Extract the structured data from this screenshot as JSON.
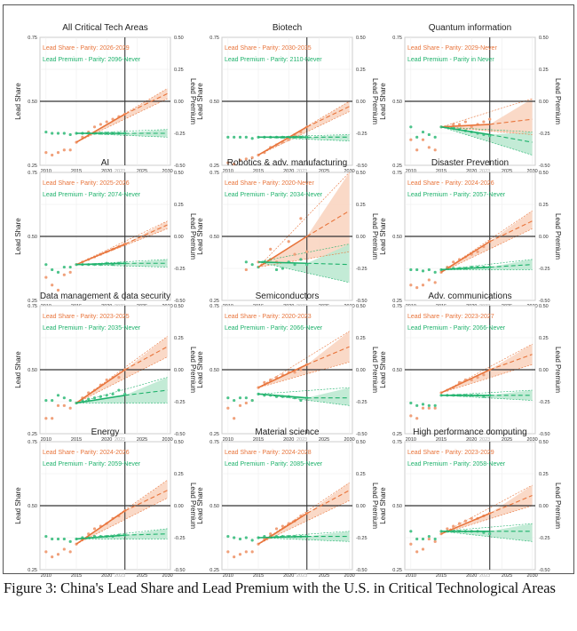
{
  "figure": {
    "caption": "Figure 3: China's Lead Share and Lead Premium with the U.S. in Critical Technological Areas",
    "colors": {
      "share": "#e8743b",
      "share_point": "#f0a07a",
      "share_band": "#f9d2bd",
      "premium": "#1fb26c",
      "premium_point": "#4cc38a",
      "premium_band": "#b8e8cf",
      "reference": "#333333"
    }
  },
  "chart_data": [
    {
      "type": "scatter",
      "title": "All Critical Tech Areas",
      "legend_share": "Lead Share - Parity: 2026-2029",
      "legend_premium": "Lead Premium - Parity: 2096-Never",
      "share": [
        0.3,
        0.29,
        0.3,
        0.31,
        0.31,
        0.34,
        0.36,
        0.38,
        0.4,
        0.41,
        0.42,
        0.43,
        0.44,
        0.45
      ],
      "share_fit": [
        0.34,
        0.45
      ],
      "share_2030": [
        0.51,
        0.53,
        0.55
      ],
      "premium": [
        -0.24,
        -0.25,
        -0.25,
        -0.25,
        -0.26,
        -0.25,
        -0.25,
        -0.25,
        -0.25,
        -0.25,
        -0.25,
        -0.25,
        -0.25,
        -0.25
      ],
      "premium_fit": [
        -0.25,
        -0.25
      ],
      "premium_2030": [
        -0.28,
        -0.25,
        -0.22
      ]
    },
    {
      "type": "scatter",
      "title": "Biotech",
      "legend_share": "Lead Share - Parity: 2030-2035",
      "legend_premium": "Lead Premium - Parity: 2110-Never",
      "share": [
        0.26,
        0.255,
        0.27,
        0.275,
        0.28,
        0.29,
        0.3,
        0.32,
        0.33,
        0.34,
        0.35,
        0.37,
        0.38,
        0.4
      ],
      "share_fit": [
        0.29,
        0.4
      ],
      "share_2030": [
        0.46,
        0.48,
        0.5
      ],
      "premium": [
        -0.28,
        -0.28,
        -0.28,
        -0.28,
        -0.29,
        -0.28,
        -0.28,
        -0.28,
        -0.28,
        -0.28,
        -0.28,
        -0.28,
        -0.28,
        -0.28
      ],
      "premium_fit": [
        -0.28,
        -0.28
      ],
      "premium_2030": [
        -0.31,
        -0.28,
        -0.26
      ]
    },
    {
      "type": "scatter",
      "title": "Quantum information",
      "legend_share": "Lead Share - Parity: 2029-Never",
      "legend_premium": "Lead Premium - Parity in Never",
      "share": [
        0.35,
        0.31,
        0.35,
        0.32,
        0.31,
        0.4,
        0.4,
        0.41,
        0.41,
        0.42,
        0.4,
        0.41,
        0.42,
        0.43
      ],
      "share_fit": [
        0.4,
        0.41
      ],
      "share_2030": [
        0.37,
        0.43,
        0.51
      ],
      "premium": [
        -0.2,
        -0.28,
        -0.24,
        -0.26,
        -0.28,
        -0.2,
        -0.2,
        -0.21,
        -0.22,
        -0.23,
        -0.24,
        -0.25,
        -0.26,
        -0.27
      ],
      "premium_fit": [
        -0.2,
        -0.26
      ],
      "premium_2030": [
        -0.42,
        -0.32,
        -0.24
      ]
    },
    {
      "type": "scatter",
      "title": "AI",
      "legend_share": "Lead Share - Parity: 2025-2026",
      "legend_premium": "Lead Premium - Parity: 2074-Never",
      "share": [
        0.34,
        0.31,
        0.29,
        0.35,
        0.36,
        0.39,
        0.4,
        0.41,
        0.42,
        0.43,
        0.44,
        0.45,
        0.46,
        0.47
      ],
      "share_fit": [
        0.39,
        0.47
      ],
      "share_2030": [
        0.53,
        0.545,
        0.56
      ],
      "premium": [
        -0.22,
        -0.26,
        -0.28,
        -0.24,
        -0.24,
        -0.22,
        -0.22,
        -0.22,
        -0.22,
        -0.22,
        -0.21,
        -0.22,
        -0.21,
        -0.21
      ],
      "premium_fit": [
        -0.22,
        -0.21
      ],
      "premium_2030": [
        -0.24,
        -0.21,
        -0.18
      ]
    },
    {
      "type": "scatter",
      "title": "Robotics & adv. manufacturing",
      "legend_share": "Lead Share - Parity: 2020-Never",
      "legend_premium": "Lead Premium - Parity: 2034-Never",
      "share": [
        null,
        null,
        null,
        0.37,
        null,
        0.4,
        null,
        0.45,
        0.4,
        null,
        0.48,
        0.43,
        0.57,
        0.44
      ],
      "share_fit": [
        0.38,
        0.5
      ],
      "share_2030": [
        0.44,
        0.6,
        0.75
      ],
      "premium": [
        null,
        null,
        null,
        -0.2,
        -0.22,
        -0.24,
        -0.2,
        -0.18,
        -0.26,
        -0.25,
        -0.2,
        -0.22,
        -0.18,
        -0.22
      ],
      "premium_fit": [
        -0.2,
        -0.21
      ],
      "premium_2030": [
        -0.36,
        -0.22,
        -0.06
      ]
    },
    {
      "type": "scatter",
      "title": "Disaster Prevention",
      "legend_share": "Lead Share - Parity: 2024-2026",
      "legend_premium": "Lead Premium - Parity: 2057-Never",
      "share": [
        0.31,
        0.3,
        0.31,
        0.33,
        0.32,
        0.36,
        0.38,
        0.4,
        0.41,
        0.42,
        0.43,
        0.44,
        0.46,
        0.48
      ],
      "share_fit": [
        0.36,
        0.48
      ],
      "share_2030": [
        0.53,
        0.56,
        0.6
      ],
      "premium": [
        -0.26,
        -0.26,
        -0.27,
        -0.26,
        -0.28,
        -0.26,
        -0.25,
        -0.25,
        -0.25,
        -0.25,
        -0.24,
        -0.24,
        -0.24,
        -0.24
      ],
      "premium_fit": [
        -0.26,
        -0.24
      ],
      "premium_2030": [
        -0.26,
        -0.22,
        -0.18
      ]
    },
    {
      "type": "scatter",
      "title": "Data management & data security",
      "legend_share": "Lead Share - Parity: 2023-2025",
      "legend_premium": "Lead Premium - Parity: 2035-Never",
      "share": [
        0.31,
        0.31,
        0.36,
        0.36,
        0.35,
        0.37,
        0.39,
        0.41,
        0.42,
        0.44,
        0.46,
        0.47,
        0.47,
        0.5
      ],
      "share_fit": [
        0.37,
        0.5
      ],
      "share_2030": [
        0.55,
        0.59,
        0.63
      ],
      "premium": [
        -0.24,
        -0.24,
        -0.2,
        -0.22,
        -0.24,
        -0.26,
        -0.24,
        -0.23,
        -0.22,
        -0.21,
        -0.2,
        -0.19,
        -0.16,
        -0.19
      ],
      "premium_fit": [
        -0.26,
        -0.2
      ],
      "premium_2030": [
        -0.26,
        -0.16,
        -0.06
      ]
    },
    {
      "type": "scatter",
      "title": "Semiconductors",
      "legend_share": "Lead Share - Parity: 2020-2023",
      "legend_premium": "Lead Premium - Parity: 2066-Never",
      "share": [
        0.35,
        0.31,
        0.36,
        0.37,
        0.38,
        0.43,
        0.45,
        0.46,
        0.47,
        0.48,
        0.49,
        0.49,
        0.5,
        0.52
      ],
      "share_fit": [
        0.43,
        0.52
      ],
      "share_2030": [
        0.53,
        0.59,
        0.65
      ],
      "premium": [
        -0.22,
        -0.24,
        -0.22,
        -0.22,
        -0.24,
        -0.19,
        -0.2,
        -0.2,
        -0.21,
        -0.21,
        -0.21,
        -0.22,
        -0.24,
        -0.22
      ],
      "premium_fit": [
        -0.19,
        -0.22
      ],
      "premium_2030": [
        -0.28,
        -0.22,
        -0.14
      ]
    },
    {
      "type": "scatter",
      "title": "Adv. communications",
      "legend_share": "Lead Share - Parity: 2023-2027",
      "legend_premium": "Lead Premium - Parity: 2066-Never",
      "share": [
        0.32,
        0.31,
        0.35,
        0.35,
        0.35,
        0.41,
        0.42,
        0.43,
        0.45,
        0.46,
        0.46,
        0.47,
        0.48,
        0.5
      ],
      "share_fit": [
        0.41,
        0.5
      ],
      "share_2030": [
        0.52,
        0.56,
        0.6
      ],
      "premium": [
        -0.26,
        -0.28,
        -0.27,
        -0.28,
        -0.28,
        -0.2,
        -0.2,
        -0.2,
        -0.2,
        -0.2,
        -0.2,
        -0.2,
        -0.21,
        -0.2
      ],
      "premium_fit": [
        -0.2,
        -0.2
      ],
      "premium_2030": [
        -0.24,
        -0.2,
        -0.16
      ]
    },
    {
      "type": "scatter",
      "title": "Energy",
      "legend_share": "Lead Share - Parity: 2024-2026",
      "legend_premium": "Lead Premium - Parity: 2059-Never",
      "share": [
        0.32,
        0.3,
        0.31,
        0.33,
        0.32,
        0.35,
        0.37,
        0.39,
        0.41,
        0.42,
        0.43,
        0.45,
        0.46,
        0.48
      ],
      "share_fit": [
        0.35,
        0.48
      ],
      "share_2030": [
        0.53,
        0.56,
        0.6
      ],
      "premium": [
        -0.24,
        -0.26,
        -0.26,
        -0.26,
        -0.28,
        -0.26,
        -0.25,
        -0.25,
        -0.24,
        -0.24,
        -0.24,
        -0.24,
        -0.23,
        -0.23
      ],
      "premium_fit": [
        -0.26,
        -0.23
      ],
      "premium_2030": [
        -0.26,
        -0.22,
        -0.18
      ]
    },
    {
      "type": "scatter",
      "title": "Material science",
      "legend_share": "Lead Share - Parity: 2024-2028",
      "legend_premium": "Lead Premium - Parity: 2085-Never",
      "share": [
        0.32,
        0.3,
        0.31,
        0.32,
        0.32,
        0.35,
        0.37,
        0.39,
        0.41,
        0.42,
        0.43,
        0.44,
        0.46,
        0.47
      ],
      "share_fit": [
        0.35,
        0.47
      ],
      "share_2030": [
        0.52,
        0.56,
        0.59
      ],
      "premium": [
        -0.24,
        -0.25,
        -0.26,
        -0.25,
        -0.27,
        -0.25,
        -0.24,
        -0.24,
        -0.24,
        -0.24,
        -0.24,
        -0.24,
        -0.24,
        -0.24
      ],
      "premium_fit": [
        -0.25,
        -0.24
      ],
      "premium_2030": [
        -0.28,
        -0.24,
        -0.2
      ]
    },
    {
      "type": "scatter",
      "title": "High performance computing",
      "legend_share": "Lead Share - Parity: 2023-2029",
      "legend_premium": "Lead Premium - Parity: 2058-Never",
      "share": [
        0.35,
        0.32,
        0.33,
        0.37,
        0.36,
        0.39,
        0.41,
        0.42,
        0.43,
        0.44,
        0.45,
        0.45,
        0.46,
        0.47
      ],
      "share_fit": [
        0.39,
        0.47
      ],
      "share_2030": [
        0.5,
        0.54,
        0.58
      ],
      "premium": [
        -0.2,
        -0.26,
        -0.26,
        -0.24,
        -0.26,
        -0.2,
        -0.2,
        -0.2,
        -0.2,
        -0.2,
        -0.2,
        -0.2,
        -0.21,
        -0.22
      ],
      "premium_fit": [
        -0.2,
        -0.2
      ],
      "premium_2030": [
        -0.28,
        -0.2,
        -0.14
      ]
    }
  ],
  "axes": {
    "x_label": "Year",
    "y_left_label": "Lead Share",
    "y_right_label": "Lead Premium",
    "x_range": [
      2009,
      2030.5
    ],
    "x_ticks": [
      "2010",
      "2015",
      "2020",
      "2023",
      "2025",
      "2030"
    ],
    "years": [
      2010,
      2011,
      2012,
      2013,
      2014,
      2015,
      2016,
      2017,
      2018,
      2019,
      2020,
      2021,
      2022,
      2023
    ],
    "y_left_range": [
      0.25,
      0.75
    ],
    "y_left_ticks": [
      "0.25",
      "0.50",
      "0.75"
    ],
    "y_right_range": [
      -0.5,
      0.5
    ],
    "y_right_ticks": [
      "-0.50",
      "-0.25",
      "0.00",
      "0.25",
      "0.50"
    ],
    "parity_share": 0.5,
    "reference_year": 2023,
    "grid": true
  }
}
